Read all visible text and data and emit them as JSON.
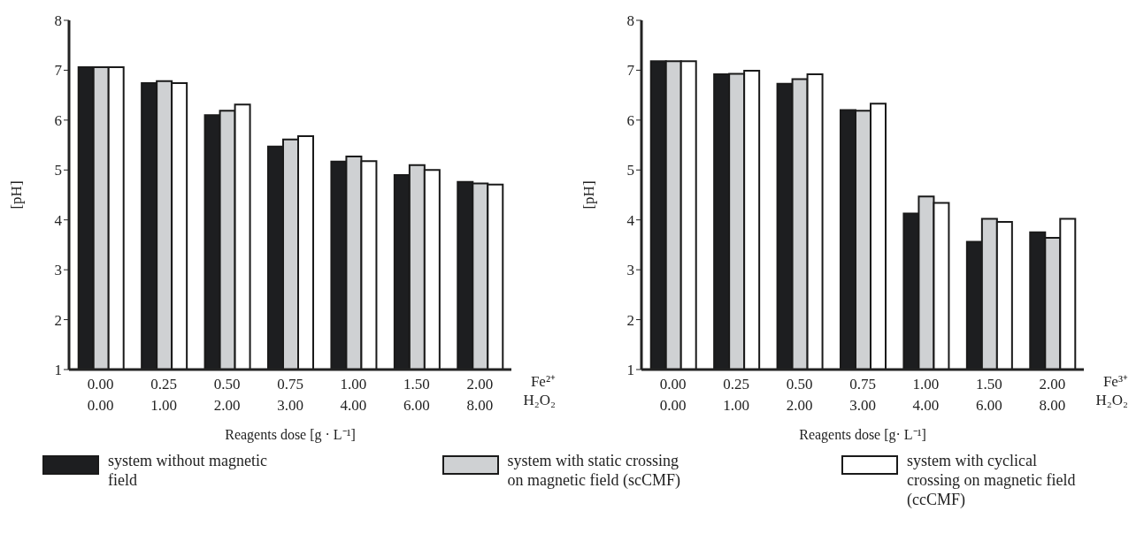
{
  "chart_data": [
    {
      "type": "bar",
      "ylabel": "[pH]",
      "xlabel": "Reagents dose [g · L⁻¹]",
      "categories": [
        "0.00\n0.00",
        "0.25\n1.00",
        "0.50\n2.00",
        "0.75\n3.00",
        "1.00\n4.00",
        "1.50\n6.00",
        "2.00\n8.00"
      ],
      "annotations": [
        "Fe²⁺",
        "H₂O₂"
      ],
      "series": [
        {
          "name": "system without magnetic field",
          "color": "#1d1e20",
          "values": [
            7.06,
            6.74,
            6.1,
            5.47,
            5.17,
            4.9,
            4.76
          ]
        },
        {
          "name": "system with static crossing on magnetic field (scCMF)",
          "color": "#cfd1d3",
          "values": [
            7.06,
            6.78,
            6.19,
            5.61,
            5.27,
            5.1,
            4.73
          ]
        },
        {
          "name": "system with cyclical crossing on magnetic field (ccCMF)",
          "color": "#ffffff",
          "values": [
            7.06,
            6.74,
            6.31,
            5.68,
            5.18,
            5.0,
            4.71
          ]
        }
      ],
      "ylim": [
        1,
        8
      ],
      "yticks": [
        1,
        2,
        3,
        4,
        5,
        6,
        7,
        8
      ],
      "legend": "bottom"
    },
    {
      "type": "bar",
      "ylabel": "[pH]",
      "xlabel": "Reagents dose [g· L⁻¹]",
      "categories": [
        "0.00\n0.00",
        "0.25\n1.00",
        "0.50\n2.00",
        "0.75\n3.00",
        "1.00\n4.00",
        "1.50\n6.00",
        "2.00\n8.00"
      ],
      "annotations": [
        "Fe³⁺",
        "H₂O₂"
      ],
      "series": [
        {
          "color": "#1d1e20",
          "values": [
            7.18,
            6.92,
            6.73,
            6.2,
            4.13,
            3.56,
            3.75
          ]
        },
        {
          "color": "#cfd1d3",
          "values": [
            7.18,
            6.93,
            6.82,
            6.19,
            4.47,
            4.02,
            3.64
          ]
        },
        {
          "color": "#ffffff",
          "values": [
            7.18,
            6.99,
            6.92,
            6.33,
            4.34,
            3.96,
            4.02
          ]
        }
      ],
      "ylim": [
        1,
        8
      ],
      "yticks": [
        1,
        2,
        3,
        4,
        5,
        6,
        7,
        8
      ]
    }
  ]
}
